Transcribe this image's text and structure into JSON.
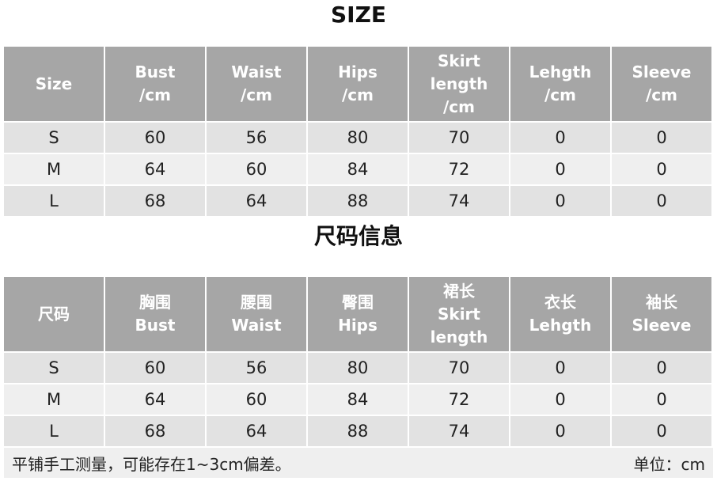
{
  "table1": {
    "title": "SIZE",
    "headers": [
      [
        "Size"
      ],
      [
        "Bust",
        "/cm"
      ],
      [
        "Waist",
        "/cm"
      ],
      [
        "Hips",
        "/cm"
      ],
      [
        "Skirt",
        "length",
        "/cm"
      ],
      [
        "Lehgth",
        "/cm"
      ],
      [
        "Sleeve",
        "/cm"
      ]
    ],
    "rows": [
      [
        "S",
        "60",
        "56",
        "80",
        "70",
        "0",
        "0"
      ],
      [
        "M",
        "64",
        "60",
        "84",
        "72",
        "0",
        "0"
      ],
      [
        "L",
        "68",
        "64",
        "88",
        "74",
        "0",
        "0"
      ]
    ]
  },
  "table2": {
    "title": "尺码信息",
    "headers": [
      [
        "尺码"
      ],
      [
        "胸围",
        "Bust"
      ],
      [
        "腰围",
        "Waist"
      ],
      [
        "臀围",
        "Hips"
      ],
      [
        "裙长",
        "Skirt",
        "length"
      ],
      [
        "衣长",
        "Lehgth"
      ],
      [
        "袖长",
        "Sleeve"
      ]
    ],
    "rows": [
      [
        "S",
        "60",
        "56",
        "80",
        "70",
        "0",
        "0"
      ],
      [
        "M",
        "64",
        "60",
        "84",
        "72",
        "0",
        "0"
      ],
      [
        "L",
        "68",
        "64",
        "88",
        "74",
        "0",
        "0"
      ]
    ]
  },
  "footer": {
    "note": "平铺手工测量，可能存在1~3cm偏差。",
    "unit": "单位：cm"
  },
  "colors": {
    "header_bg": "#a6a6a6",
    "row_dark": "#e2e2e2",
    "row_light": "#efefef"
  }
}
